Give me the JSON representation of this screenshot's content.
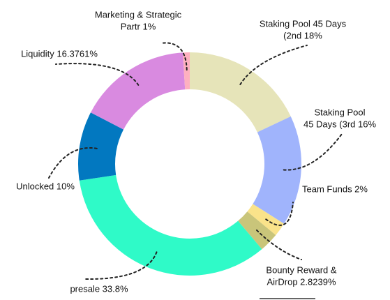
{
  "chart_data": {
    "type": "donut",
    "labels": [
      [
        "Staking Pool 45 Days",
        "(2nd 18%"
      ],
      [
        "Staking Pool",
        "45 Days (3rd 16%"
      ],
      [
        "Team Funds 2%"
      ],
      [
        "Bounty Reward &",
        "AirDrop 2.8239%"
      ],
      [
        "presale 33.8%"
      ],
      [
        "Unlocked 10%"
      ],
      [
        "Liquidity 16.3761%"
      ],
      [
        "Marketing & Strategic",
        "Partr 1%"
      ]
    ],
    "values": [
      18,
      16,
      2,
      2.8239,
      33.8,
      10,
      16.3761,
      1
    ],
    "colors": [
      "#e6e4b9",
      "#a0b4fc",
      "#fae38a",
      "#c9c57a",
      "#2ffac8",
      "#0278c0",
      "#d98ae0",
      "#feb0c0"
    ]
  }
}
